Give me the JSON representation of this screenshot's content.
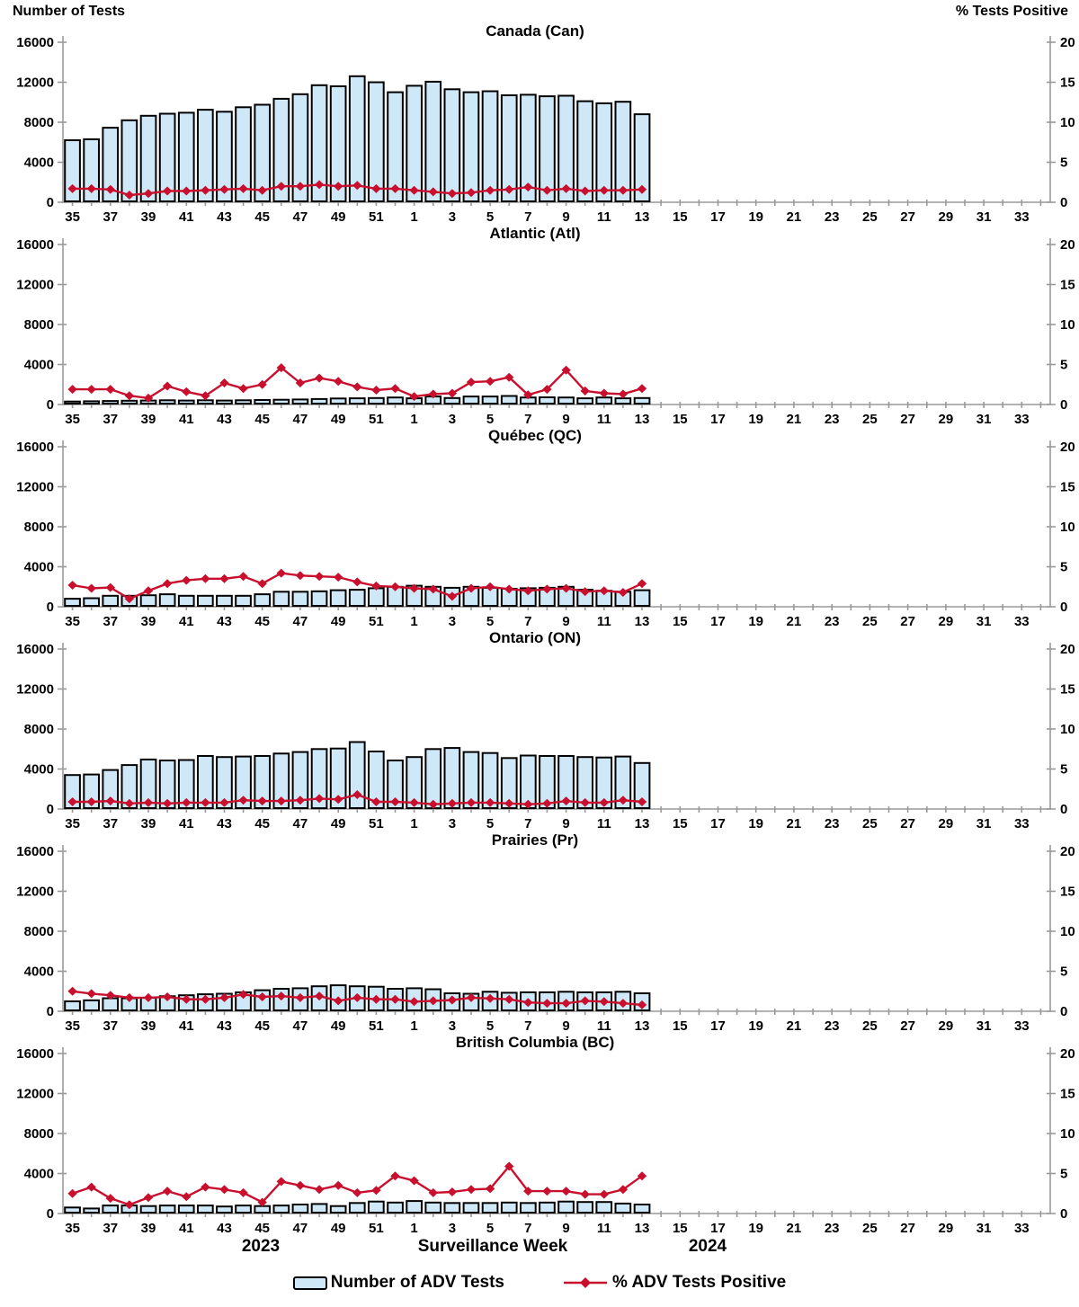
{
  "header": {
    "left_axis_title": "Number of Tests",
    "right_axis_title": "% Tests Positive"
  },
  "footer": {
    "year_left": "2023",
    "x_axis_title": "Surveillance Week",
    "year_right": "2024"
  },
  "legend": {
    "bar_label": "Number of ADV Tests",
    "line_label": "% ADV Tests Positive"
  },
  "colors": {
    "bar_fill": "#cfe8f7",
    "bar_stroke": "#000000",
    "line": "#c8102e",
    "axis": "#999999",
    "text": "#000000"
  },
  "axis": {
    "left_ticks": [
      0,
      4000,
      8000,
      12000,
      16000
    ],
    "left_range": [
      0,
      16000
    ],
    "right_ticks": [
      0,
      5,
      10,
      15,
      20
    ],
    "right_range": [
      0,
      20
    ],
    "total_week_slots": 52,
    "x_tick_labels": [
      "35",
      "37",
      "39",
      "41",
      "43",
      "45",
      "47",
      "49",
      "51",
      "1",
      "3",
      "5",
      "7",
      "9",
      "11",
      "13",
      "15",
      "17",
      "19",
      "21",
      "23",
      "25",
      "27",
      "29",
      "31",
      "33"
    ],
    "bar_weeks": [
      "35",
      "36",
      "37",
      "38",
      "39",
      "40",
      "41",
      "42",
      "43",
      "44",
      "45",
      "46",
      "47",
      "48",
      "49",
      "50",
      "51",
      "52",
      "1",
      "2",
      "3",
      "4",
      "5",
      "6",
      "7",
      "8",
      "9",
      "10",
      "11",
      "12",
      "13"
    ]
  },
  "chart_data": [
    {
      "type": "bar+line",
      "title": "Canada (Can)",
      "bars": [
        6200,
        6300,
        7450,
        8200,
        8650,
        8850,
        8950,
        9250,
        9050,
        9500,
        9750,
        10350,
        10800,
        11700,
        11600,
        12600,
        12000,
        11000,
        11650,
        12050,
        11300,
        11000,
        11100,
        10700,
        10750,
        10600,
        10650,
        10100,
        9900,
        10050,
        8800
      ],
      "pct": [
        1.7,
        1.7,
        1.6,
        0.9,
        1.1,
        1.4,
        1.4,
        1.5,
        1.6,
        1.7,
        1.5,
        2.0,
        2.0,
        2.2,
        2.0,
        2.1,
        1.7,
        1.7,
        1.5,
        1.3,
        1.1,
        1.2,
        1.5,
        1.6,
        1.9,
        1.5,
        1.7,
        1.4,
        1.5,
        1.5,
        1.6
      ]
    },
    {
      "type": "bar+line",
      "title": "Atlantic (Atl)",
      "bars": [
        300,
        320,
        350,
        380,
        400,
        420,
        400,
        420,
        400,
        420,
        450,
        480,
        500,
        550,
        600,
        620,
        650,
        700,
        620,
        800,
        650,
        800,
        800,
        850,
        700,
        720,
        700,
        620,
        700,
        620,
        650
      ],
      "pct": [
        1.9,
        1.9,
        1.9,
        1.1,
        0.8,
        2.3,
        1.6,
        1.1,
        2.7,
        2.0,
        2.5,
        4.6,
        2.7,
        3.3,
        2.9,
        2.2,
        1.8,
        2.0,
        1.0,
        1.3,
        1.4,
        2.8,
        2.9,
        3.4,
        1.2,
        1.9,
        4.3,
        1.7,
        1.4,
        1.3,
        2.0
      ]
    },
    {
      "type": "bar+line",
      "title": "Québec (QC)",
      "bars": [
        800,
        850,
        1100,
        1100,
        1150,
        1250,
        1100,
        1100,
        1100,
        1100,
        1250,
        1500,
        1500,
        1550,
        1650,
        1700,
        1850,
        2000,
        2100,
        2000,
        1900,
        2000,
        1900,
        1800,
        1850,
        1900,
        2000,
        1700,
        1600,
        1500,
        1650
      ],
      "pct": [
        2.7,
        2.3,
        2.4,
        1.0,
        2.0,
        2.9,
        3.3,
        3.5,
        3.5,
        3.8,
        2.9,
        4.2,
        3.9,
        3.8,
        3.7,
        3.1,
        2.6,
        2.5,
        2.3,
        2.2,
        1.3,
        2.3,
        2.5,
        2.2,
        2.0,
        2.2,
        2.3,
        1.9,
        2.0,
        1.8,
        2.9
      ]
    },
    {
      "type": "bar+line",
      "title": "Ontario (ON)",
      "bars": [
        3400,
        3450,
        3900,
        4400,
        4950,
        4850,
        4900,
        5300,
        5200,
        5250,
        5300,
        5550,
        5700,
        6000,
        6050,
        6700,
        5750,
        4850,
        5200,
        6000,
        6100,
        5700,
        5600,
        5100,
        5350,
        5300,
        5300,
        5200,
        5150,
        5250,
        4600
      ],
      "pct": [
        0.9,
        0.9,
        1.0,
        0.7,
        0.8,
        0.7,
        0.8,
        0.8,
        0.8,
        1.1,
        1.0,
        1.0,
        1.1,
        1.3,
        1.2,
        1.8,
        0.9,
        0.9,
        0.8,
        0.6,
        0.7,
        0.8,
        0.8,
        0.7,
        0.6,
        0.7,
        1.0,
        0.8,
        0.8,
        1.1,
        0.9
      ]
    },
    {
      "type": "bar+line",
      "title": "Prairies (Pr)",
      "bars": [
        1000,
        1100,
        1300,
        1300,
        1350,
        1500,
        1600,
        1700,
        1750,
        1900,
        2100,
        2250,
        2300,
        2500,
        2600,
        2500,
        2450,
        2250,
        2300,
        2200,
        1800,
        1750,
        1950,
        1850,
        1900,
        1900,
        1950,
        1900,
        1900,
        1950,
        1800
      ],
      "pct": [
        2.5,
        2.2,
        2.0,
        1.7,
        1.7,
        1.8,
        1.5,
        1.5,
        1.7,
        2.1,
        1.8,
        1.9,
        1.7,
        1.9,
        1.3,
        1.7,
        1.5,
        1.5,
        1.2,
        1.3,
        1.4,
        1.7,
        1.6,
        1.5,
        1.1,
        1.0,
        1.0,
        1.3,
        1.2,
        1.0,
        0.8
      ]
    },
    {
      "type": "bar+line",
      "title": "British Columbia (BC)",
      "bars": [
        600,
        500,
        800,
        800,
        750,
        800,
        800,
        800,
        700,
        800,
        750,
        800,
        900,
        950,
        750,
        1050,
        1200,
        1100,
        1250,
        1100,
        1050,
        1050,
        1050,
        1100,
        1050,
        1100,
        1200,
        1150,
        1150,
        1000,
        900
      ],
      "pct": [
        2.5,
        3.3,
        1.9,
        1.1,
        2.0,
        2.8,
        2.1,
        3.3,
        3.0,
        2.6,
        1.4,
        4.0,
        3.5,
        3.0,
        3.5,
        2.6,
        2.9,
        4.7,
        4.1,
        2.6,
        2.7,
        3.0,
        3.1,
        5.9,
        2.8,
        2.8,
        2.8,
        2.4,
        2.4,
        3.0,
        4.7
      ]
    }
  ]
}
